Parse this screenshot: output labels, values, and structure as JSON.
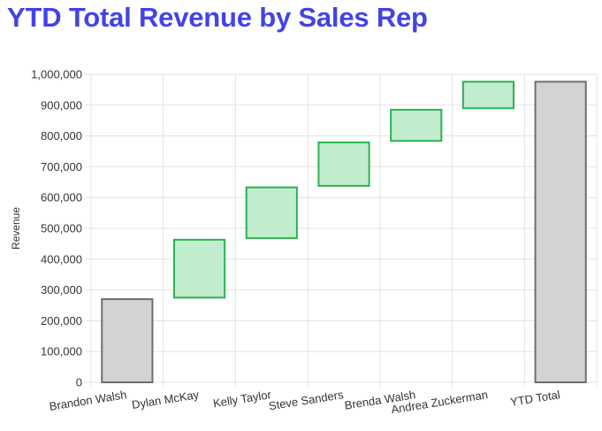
{
  "title": "YTD Total Revenue by Sales Rep",
  "colors": {
    "title": "#4343e8",
    "increase_fill": "#c1ecce",
    "increase_stroke": "#2bb34f",
    "total_fill": "#d3d3d3",
    "total_stroke": "#6e6e6e",
    "grid": "#e3e3e3"
  },
  "chart_data": {
    "type": "bar",
    "subtype": "waterfall",
    "ylabel": "Revenue",
    "xlabel": "",
    "ylim": [
      0,
      1000000
    ],
    "yticks": [
      0,
      100000,
      200000,
      300000,
      400000,
      500000,
      600000,
      700000,
      800000,
      900000,
      1000000
    ],
    "ytick_labels": [
      "0",
      "100,000",
      "200,000",
      "300,000",
      "400,000",
      "500,000",
      "600,000",
      "700,000",
      "800,000",
      "900,000",
      "1,000,000"
    ],
    "grid": true,
    "categories": [
      "Brandon Walsh",
      "Dylan McKay",
      "Kelly Taylor",
      "Steve Sanders",
      "Brenda Walsh",
      "Andrea Zuckerman",
      "YTD Total"
    ],
    "bars": [
      {
        "category": "Brandon Walsh",
        "kind": "total",
        "start": 0,
        "end": 270000
      },
      {
        "category": "Dylan McKay",
        "kind": "increase",
        "start": 275000,
        "end": 463000
      },
      {
        "category": "Kelly Taylor",
        "kind": "increase",
        "start": 468000,
        "end": 633000
      },
      {
        "category": "Steve Sanders",
        "kind": "increase",
        "start": 638000,
        "end": 779000
      },
      {
        "category": "Brenda Walsh",
        "kind": "increase",
        "start": 784000,
        "end": 885000
      },
      {
        "category": "Andrea Zuckerman",
        "kind": "increase",
        "start": 890000,
        "end": 976000
      },
      {
        "category": "YTD Total",
        "kind": "total",
        "start": 0,
        "end": 976000
      }
    ]
  }
}
